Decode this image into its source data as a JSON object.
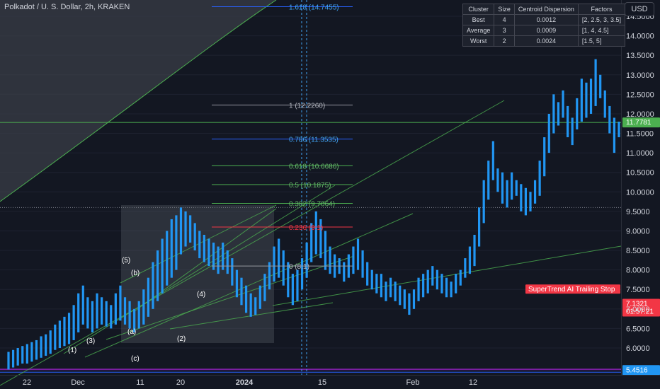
{
  "header": {
    "title": "Polkadot / U. S. Dollar, 2h, KRAKEN",
    "currency": "USD"
  },
  "stats_table": {
    "headers": [
      "Cluster",
      "Size",
      "Centroid Dispersion",
      "Factors"
    ],
    "rows": [
      [
        "Best",
        "4",
        "0.0012",
        "[2, 2.5, 3, 3.5]"
      ],
      [
        "Average",
        "3",
        "0.0009",
        "[1, 4, 4.5]"
      ],
      [
        "Worst",
        "2",
        "0.0024",
        "[1.5, 5]"
      ]
    ]
  },
  "colors": {
    "background": "#131722",
    "candle": "#2196f3",
    "trendline": "#4caf50",
    "fib_blue": "#2962ff",
    "fib_green": "#4caf50",
    "fib_red": "#f23645",
    "fib_gray": "#787b86",
    "price_label": "#42a5f5",
    "stop_label": "#f23645",
    "support_line": "#7b1fa2",
    "horizontal_level": "#4caf50"
  },
  "chart_data": {
    "type": "bar",
    "y_axis_ticks": [
      "6.0000",
      "6.5000",
      "7.0000",
      "7.5000",
      "8.0000",
      "8.5000",
      "9.0000",
      "9.5000",
      "10.0000",
      "10.5000",
      "11.0000",
      "11.5000",
      "12.0000",
      "12.5000",
      "13.0000",
      "13.5000",
      "14.0000",
      "14.5000"
    ],
    "x_axis_ticks": [
      "22",
      "Dec",
      "11",
      "20",
      "2024",
      "15",
      "Feb",
      "12"
    ],
    "ylim": [
      5.3,
      15.0
    ],
    "current_price": "11.7781",
    "stop_price": "7.1321",
    "countdown": "01:57:21",
    "support_price": "5.4516",
    "supertrend_label": "SuperTrend AI Trailing Stop",
    "fib_levels": [
      {
        "label": "1.618 (14.7455)",
        "value": 14.7455,
        "color": "blue"
      },
      {
        "label": "1 (12.2260)",
        "value": 12.226,
        "color": "gray"
      },
      {
        "label": "0.786 (11.3535)",
        "value": 11.3535,
        "color": "blue"
      },
      {
        "label": "0.618 (10.6686)",
        "value": 10.6686,
        "color": "green"
      },
      {
        "label": "0.5 (10.1875)",
        "value": 10.1875,
        "color": "green"
      },
      {
        "label": "0.382 (9.7064)",
        "value": 9.7064,
        "color": "green"
      },
      {
        "label": "0.236 (9.1)",
        "value": 9.1,
        "color": "red"
      },
      {
        "label": "0 (8.1)",
        "value": 8.1,
        "color": "gray"
      }
    ],
    "wave_labels": [
      "(1)",
      "(2)",
      "(3)",
      "(4)",
      "(5)",
      "(a)",
      "(b)",
      "(c)"
    ],
    "series": [
      {
        "values": [
          [
            5.45,
            5.9
          ],
          [
            5.5,
            5.95
          ],
          [
            5.55,
            6.0
          ],
          [
            5.6,
            6.05
          ],
          [
            5.6,
            6.1
          ],
          [
            5.65,
            6.15
          ],
          [
            5.7,
            6.2
          ],
          [
            5.75,
            6.3
          ],
          [
            5.8,
            6.35
          ],
          [
            5.85,
            6.45
          ],
          [
            5.95,
            6.6
          ],
          [
            6.0,
            6.7
          ],
          [
            6.05,
            6.8
          ],
          [
            6.1,
            6.9
          ],
          [
            6.2,
            7.1
          ],
          [
            6.4,
            7.4
          ],
          [
            6.6,
            7.6
          ],
          [
            6.5,
            7.3
          ],
          [
            6.4,
            7.2
          ],
          [
            6.5,
            7.4
          ],
          [
            6.6,
            7.3
          ],
          [
            6.55,
            7.2
          ],
          [
            6.5,
            7.1
          ],
          [
            6.6,
            7.4
          ],
          [
            6.7,
            7.6
          ],
          [
            6.6,
            7.3
          ],
          [
            6.5,
            7.2
          ],
          [
            6.4,
            7.0
          ],
          [
            6.5,
            7.2
          ],
          [
            6.6,
            7.5
          ],
          [
            6.8,
            7.8
          ],
          [
            7.0,
            8.2
          ],
          [
            7.2,
            8.5
          ],
          [
            7.4,
            8.8
          ],
          [
            7.6,
            9.0
          ],
          [
            7.8,
            9.3
          ],
          [
            8.0,
            9.4
          ],
          [
            8.4,
            9.6
          ],
          [
            8.6,
            9.5
          ],
          [
            8.7,
            9.4
          ],
          [
            8.5,
            9.2
          ],
          [
            8.3,
            9.0
          ],
          [
            8.2,
            8.9
          ],
          [
            8.1,
            8.8
          ],
          [
            8.0,
            8.7
          ],
          [
            7.9,
            8.6
          ],
          [
            8.0,
            8.7
          ],
          [
            7.9,
            8.5
          ],
          [
            7.6,
            8.3
          ],
          [
            7.3,
            8.0
          ],
          [
            7.1,
            7.8
          ],
          [
            6.9,
            7.6
          ],
          [
            6.8,
            7.4
          ],
          [
            6.85,
            7.3
          ],
          [
            7.0,
            7.6
          ],
          [
            7.2,
            7.9
          ],
          [
            7.5,
            8.2
          ],
          [
            7.7,
            8.6
          ],
          [
            7.8,
            8.8
          ],
          [
            7.6,
            8.5
          ],
          [
            7.3,
            8.2
          ],
          [
            7.1,
            7.9
          ],
          [
            7.2,
            8.0
          ],
          [
            7.5,
            8.3
          ],
          [
            7.8,
            8.7
          ],
          [
            8.2,
            9.2
          ],
          [
            8.4,
            9.5
          ],
          [
            8.3,
            9.3
          ],
          [
            8.0,
            9.0
          ],
          [
            7.9,
            8.6
          ],
          [
            7.8,
            8.4
          ],
          [
            7.9,
            8.3
          ],
          [
            7.7,
            8.2
          ],
          [
            7.8,
            8.4
          ],
          [
            7.9,
            8.6
          ],
          [
            8.0,
            8.8
          ],
          [
            7.8,
            8.5
          ],
          [
            7.6,
            8.2
          ],
          [
            7.5,
            8.0
          ],
          [
            7.4,
            7.9
          ],
          [
            7.3,
            7.9
          ],
          [
            7.2,
            7.7
          ],
          [
            7.3,
            7.8
          ],
          [
            7.2,
            7.7
          ],
          [
            7.1,
            7.6
          ],
          [
            7.0,
            7.5
          ],
          [
            6.85,
            7.4
          ],
          [
            7.0,
            7.5
          ],
          [
            7.2,
            7.8
          ],
          [
            7.3,
            7.9
          ],
          [
            7.4,
            8.0
          ],
          [
            7.6,
            8.1
          ],
          [
            7.5,
            8.0
          ],
          [
            7.4,
            7.9
          ],
          [
            7.3,
            7.8
          ],
          [
            7.3,
            7.7
          ],
          [
            7.4,
            7.9
          ],
          [
            7.6,
            8.0
          ],
          [
            7.8,
            8.3
          ],
          [
            7.9,
            8.6
          ],
          [
            8.1,
            8.9
          ],
          [
            8.6,
            9.6
          ],
          [
            9.2,
            10.3
          ],
          [
            9.8,
            10.8
          ],
          [
            10.3,
            11.3
          ],
          [
            10.0,
            10.6
          ],
          [
            9.7,
            10.5
          ],
          [
            9.6,
            10.3
          ],
          [
            9.8,
            10.5
          ],
          [
            9.9,
            10.3
          ],
          [
            9.5,
            10.2
          ],
          [
            9.4,
            10.1
          ],
          [
            9.5,
            10.0
          ],
          [
            9.7,
            10.3
          ],
          [
            9.9,
            10.8
          ],
          [
            10.4,
            11.4
          ],
          [
            11.0,
            12.0
          ],
          [
            11.5,
            12.5
          ],
          [
            11.7,
            12.3
          ],
          [
            11.9,
            12.6
          ],
          [
            11.4,
            12.2
          ],
          [
            11.2,
            11.9
          ],
          [
            11.6,
            12.4
          ],
          [
            11.8,
            12.9
          ],
          [
            11.9,
            12.8
          ],
          [
            12.0,
            12.9
          ],
          [
            12.2,
            13.4
          ],
          [
            12.4,
            13.0
          ],
          [
            11.9,
            12.6
          ],
          [
            11.5,
            12.2
          ],
          [
            11.0,
            11.9
          ],
          [
            11.4,
            11.8
          ]
        ]
      }
    ]
  }
}
